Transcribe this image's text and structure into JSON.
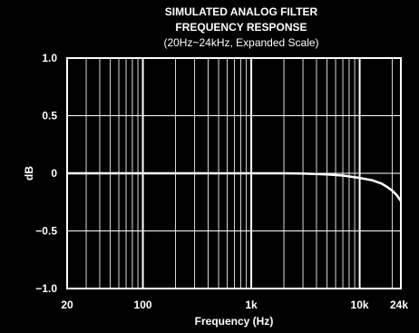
{
  "chart_data": {
    "type": "line",
    "title_lines": [
      "SIMULATED ANALOG FILTER",
      "FREQUENCY RESPONSE"
    ],
    "subtitle": "(20Hz~24kHz, Expanded Scale)",
    "xlabel": "Frequency (Hz)",
    "ylabel": "dB",
    "x_scale": "log",
    "xlim": [
      20,
      24000
    ],
    "ylim": [
      -1.0,
      1.0
    ],
    "grid": true,
    "x_ticks": [
      {
        "value": 20,
        "label": "20"
      },
      {
        "value": 100,
        "label": "100"
      },
      {
        "value": 1000,
        "label": "1k"
      },
      {
        "value": 10000,
        "label": "10k"
      },
      {
        "value": 24000,
        "label": "24k"
      }
    ],
    "y_ticks": [
      {
        "value": 1.0,
        "label": "1.0"
      },
      {
        "value": 0.5,
        "label": "0.5"
      },
      {
        "value": 0,
        "label": "0"
      },
      {
        "value": -0.5,
        "label": "−0.5"
      },
      {
        "value": -1.0,
        "label": "−1.0"
      }
    ],
    "series": [
      {
        "x": [
          20,
          50,
          100,
          200,
          500,
          1000,
          2000,
          3000,
          5000,
          7000,
          10000,
          13000,
          16000,
          18000,
          20000,
          22000,
          24000
        ],
        "values": [
          0.0,
          0.0,
          0.0,
          0.0,
          0.0,
          0.0,
          0.0,
          -0.002,
          -0.01,
          -0.02,
          -0.04,
          -0.06,
          -0.09,
          -0.12,
          -0.15,
          -0.19,
          -0.24
        ]
      }
    ],
    "colors": {
      "background": "#000000",
      "grid": "#ffffff",
      "line": "#ffffff",
      "text": "#ffffff"
    }
  }
}
